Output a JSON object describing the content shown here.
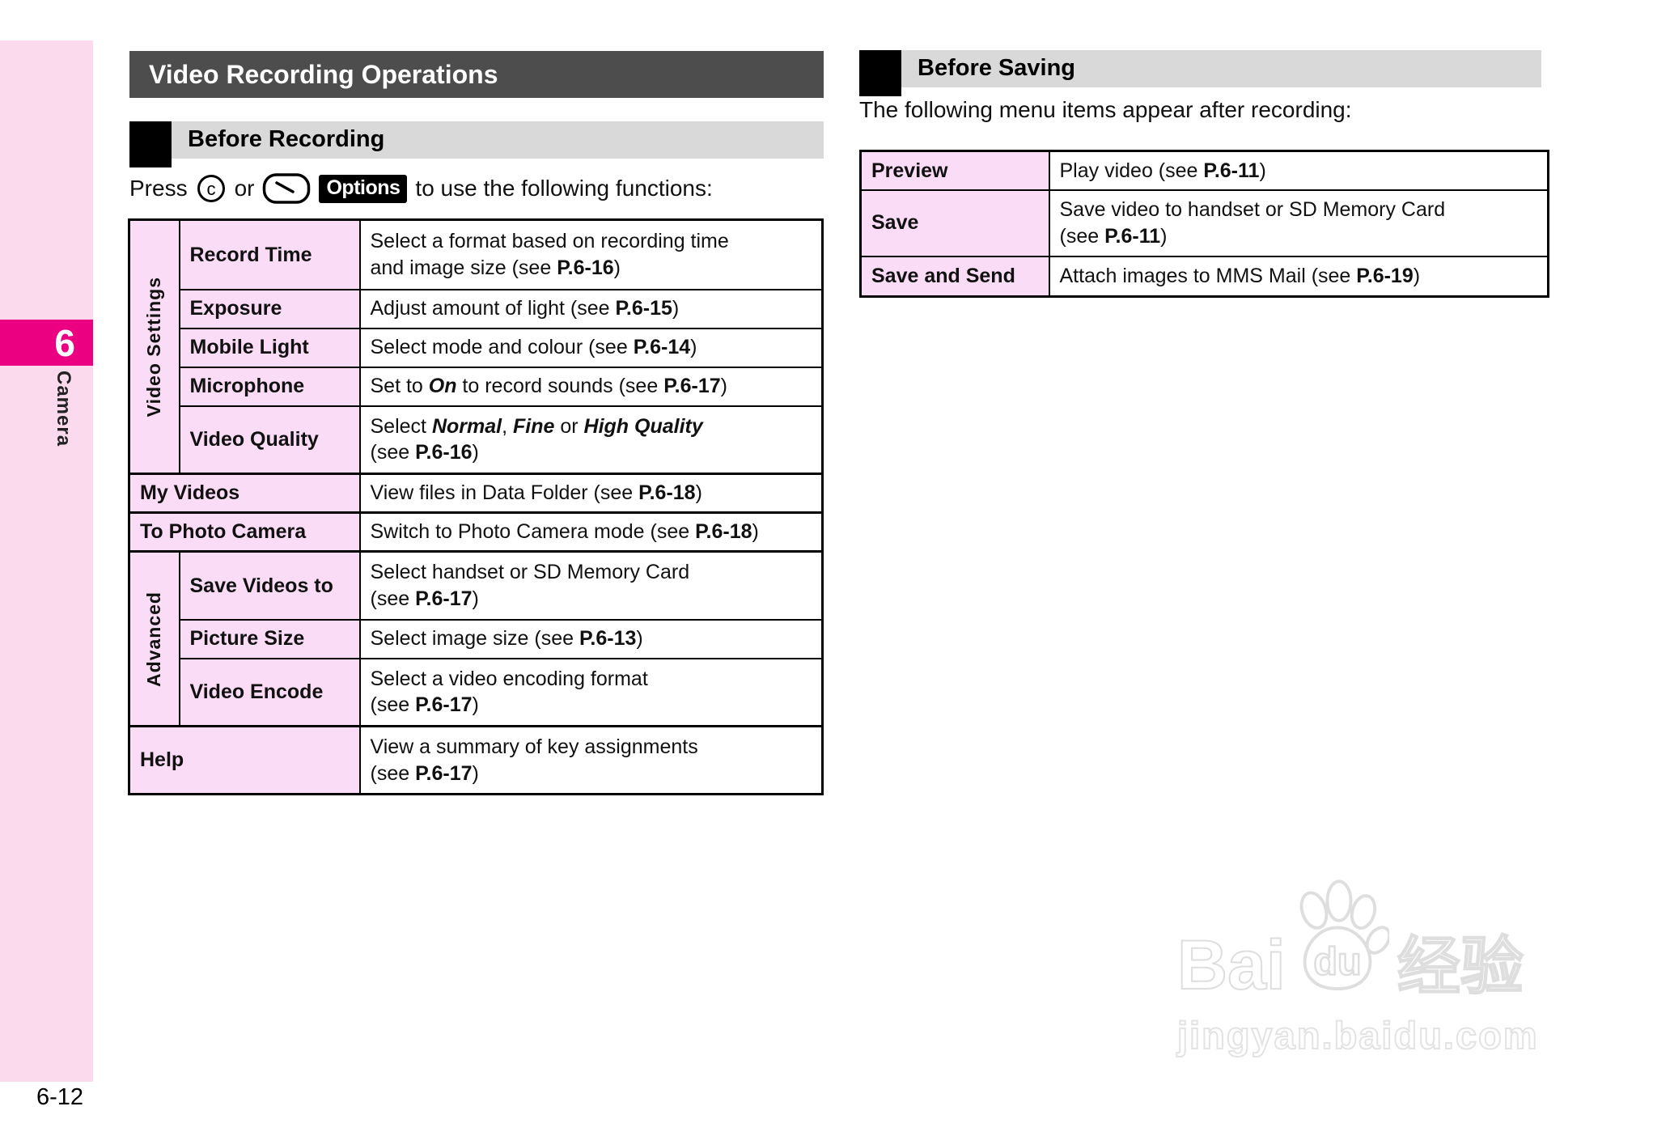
{
  "page": {
    "title": "Video Recording Operations",
    "page_number": "6-12"
  },
  "sidebar": {
    "chapter_number": "6",
    "chapter_label": "Camera"
  },
  "before_recording": {
    "heading": "Before Recording",
    "intro_prefix": "Press",
    "or_word": "or",
    "options_key_label": "Options",
    "intro_suffix": "to use the following functions:"
  },
  "before_saving": {
    "heading": "Before Saving",
    "intro": "The following menu items appear after recording:"
  },
  "left_table": {
    "rows": [
      {
        "group": "Video Settings",
        "label": "Record Time",
        "desc": [
          {
            "t": "Select a format based on recording time"
          },
          {
            "br": true
          },
          {
            "t": "and image size (see "
          },
          {
            "t": "P.6-16",
            "b": true
          },
          {
            "t": ")"
          }
        ]
      },
      {
        "label": "Exposure",
        "desc": [
          {
            "t": "Adjust amount of light (see "
          },
          {
            "t": "P.6-15",
            "b": true
          },
          {
            "t": ")"
          }
        ]
      },
      {
        "label": "Mobile Light",
        "desc": [
          {
            "t": "Select mode and colour (see "
          },
          {
            "t": "P.6-14",
            "b": true
          },
          {
            "t": ")"
          }
        ]
      },
      {
        "label": "Microphone",
        "desc": [
          {
            "t": "Set to "
          },
          {
            "t": "On",
            "b": true,
            "i": true
          },
          {
            "t": " to record sounds (see "
          },
          {
            "t": "P.6-17",
            "b": true
          },
          {
            "t": ")"
          }
        ]
      },
      {
        "label": "Video Quality",
        "desc": [
          {
            "t": "Select "
          },
          {
            "t": "Normal",
            "b": true,
            "i": true
          },
          {
            "t": ", "
          },
          {
            "t": "Fine",
            "b": true,
            "i": true
          },
          {
            "t": " or "
          },
          {
            "t": "High Quality",
            "b": true,
            "i": true
          },
          {
            "br": true
          },
          {
            "t": "(see "
          },
          {
            "t": "P.6-16",
            "b": true
          },
          {
            "t": ")"
          }
        ]
      },
      {
        "label": "My Videos",
        "desc": [
          {
            "t": "View files in Data Folder (see "
          },
          {
            "t": "P.6-18",
            "b": true
          },
          {
            "t": ")"
          }
        ]
      },
      {
        "label": "To Photo Camera",
        "desc": [
          {
            "t": "Switch to Photo Camera mode (see "
          },
          {
            "t": "P.6-18",
            "b": true
          },
          {
            "t": ")"
          }
        ]
      },
      {
        "group": "Advanced",
        "label": "Save Videos to",
        "desc": [
          {
            "t": "Select handset or SD Memory Card"
          },
          {
            "br": true
          },
          {
            "t": "(see "
          },
          {
            "t": "P.6-17",
            "b": true
          },
          {
            "t": ")"
          }
        ]
      },
      {
        "label": "Picture Size",
        "desc": [
          {
            "t": "Select image size (see "
          },
          {
            "t": "P.6-13",
            "b": true
          },
          {
            "t": ")"
          }
        ]
      },
      {
        "label": "Video Encode",
        "desc": [
          {
            "t": "Select a video encoding format"
          },
          {
            "br": true
          },
          {
            "t": "(see "
          },
          {
            "t": "P.6-17",
            "b": true
          },
          {
            "t": ")"
          }
        ]
      },
      {
        "label": "Help",
        "desc": [
          {
            "t": "View a summary of key assignments"
          },
          {
            "br": true
          },
          {
            "t": "(see "
          },
          {
            "t": "P.6-17",
            "b": true
          },
          {
            "t": ")"
          }
        ]
      }
    ]
  },
  "right_table": {
    "rows": [
      {
        "label": "Preview",
        "desc": [
          {
            "t": "Play video (see "
          },
          {
            "t": "P.6-11",
            "b": true
          },
          {
            "t": ")"
          }
        ]
      },
      {
        "label": "Save",
        "desc": [
          {
            "t": "Save video to handset or SD Memory Card"
          },
          {
            "br": true
          },
          {
            "t": "(see "
          },
          {
            "t": "P.6-11",
            "b": true
          },
          {
            "t": ")"
          }
        ]
      },
      {
        "label": "Save and Send",
        "desc": [
          {
            "t": "Attach images to MMS Mail (see "
          },
          {
            "t": "P.6-19",
            "b": true
          },
          {
            "t": ")"
          }
        ]
      }
    ]
  },
  "watermark": {
    "brand": "Bai",
    "paw_text": "du",
    "brand_suffix": "经验",
    "domain": "jingyan.baidu.com"
  },
  "icons": {
    "center_key": "c",
    "soft_key": "softkey"
  },
  "colors": {
    "accent_magenta": "#ec0082",
    "sidebar_pink": "#fbdaee",
    "cell_pink": "#fbdcf6",
    "title_bar_gray": "#4d4d4d",
    "section_bar_gray": "#d9d9d9"
  }
}
